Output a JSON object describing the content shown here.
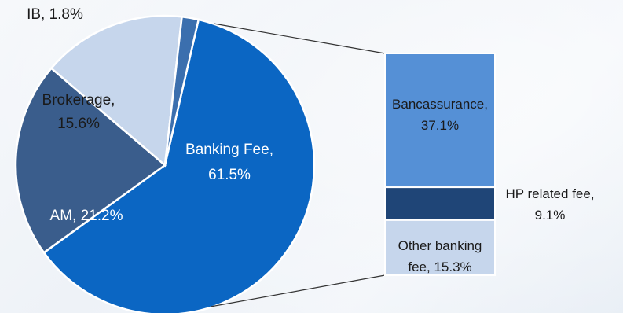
{
  "chart_data": [
    {
      "type": "pie",
      "slices": [
        {
          "name": "Banking Fee",
          "value": 61.5,
          "label": "Banking Fee,",
          "value_label": "61.5%",
          "color": "#0b66c3"
        },
        {
          "name": "AM",
          "value": 21.2,
          "label": "AM, 21.2%",
          "color": "#3a5d8c"
        },
        {
          "name": "Brokerage",
          "value": 15.6,
          "label": "Brokerage,",
          "value_label": "15.6%",
          "color": "#c6d6ec"
        },
        {
          "name": "IB",
          "value": 1.8,
          "label": "IB, 1.8%",
          "color": "#3b6fae"
        }
      ]
    },
    {
      "type": "bar",
      "stacked": true,
      "breakdown_of": "Banking Fee",
      "segments": [
        {
          "name": "Bancassurance",
          "value": 37.1,
          "label": "Bancassurance,",
          "value_label": "37.1%",
          "color": "#5590d6"
        },
        {
          "name": "HP related fee",
          "value": 9.1,
          "label": "HP related fee,",
          "value_label": "9.1%",
          "color": "#1f4577"
        },
        {
          "name": "Other banking fee",
          "value": 15.3,
          "label": "Other banking",
          "value_label": "fee, 15.3%",
          "color": "#c6d6ec"
        }
      ]
    }
  ]
}
